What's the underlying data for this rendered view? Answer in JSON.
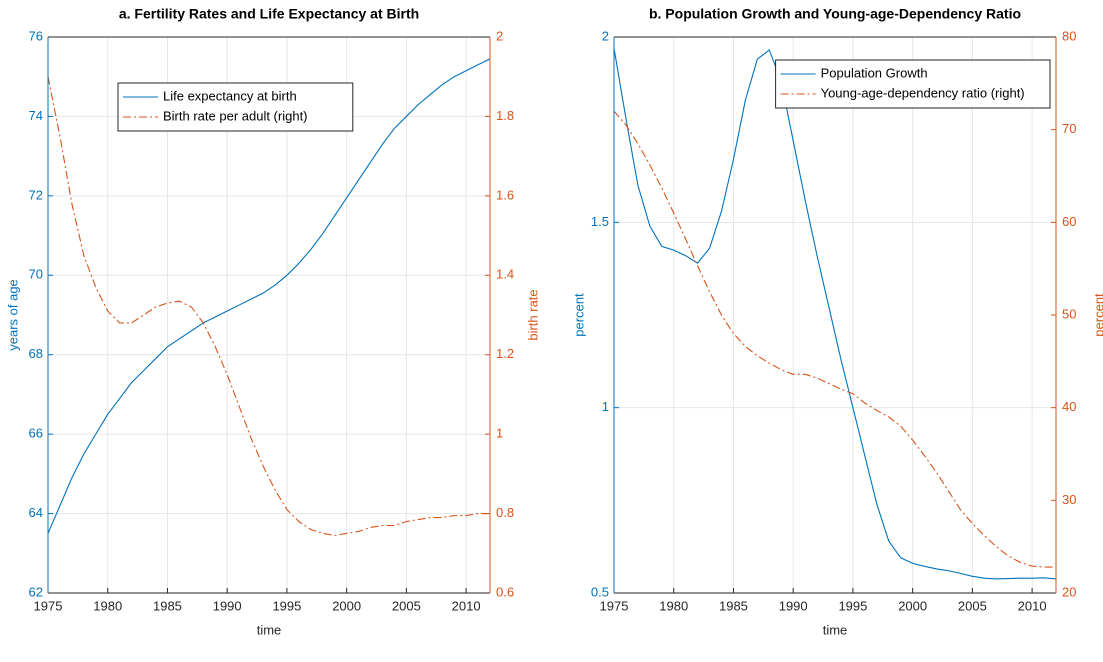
{
  "chart_data": [
    {
      "type": "line",
      "title": "a. Fertility Rates and Life Expectancy at Birth",
      "xlabel": "time",
      "ylabel": "years of age",
      "y2label": "birth rate",
      "x": [
        1975,
        1976,
        1977,
        1978,
        1979,
        1980,
        1981,
        1982,
        1983,
        1984,
        1985,
        1986,
        1987,
        1988,
        1989,
        1990,
        1991,
        1992,
        1993,
        1994,
        1995,
        1996,
        1997,
        1998,
        1999,
        2000,
        2001,
        2002,
        2003,
        2004,
        2005,
        2006,
        2007,
        2008,
        2009,
        2010,
        2011,
        2012
      ],
      "xlim": [
        1975,
        2012
      ],
      "xticks": [
        1975,
        1980,
        1985,
        1990,
        1995,
        2000,
        2005,
        2010
      ],
      "ylim": [
        62,
        76
      ],
      "yticks": [
        62,
        64,
        66,
        68,
        70,
        72,
        74,
        76
      ],
      "y2lim": [
        0.6,
        2
      ],
      "y2ticks": [
        0.6,
        0.8,
        1,
        1.2,
        1.4,
        1.6,
        1.8,
        2
      ],
      "grid": true,
      "legend": "north",
      "axis_colors": {
        "y": "#0072BD",
        "y2": "#D95319"
      },
      "series": [
        {
          "name": "Life expectancy at birth",
          "color": "#0072BD",
          "line_style": "solid",
          "values": [
            63.5,
            64.2,
            64.9,
            65.5,
            66.0,
            66.5,
            66.9,
            67.3,
            67.6,
            67.9,
            68.2,
            68.4,
            68.6,
            68.8,
            68.95,
            69.1,
            69.25,
            69.4,
            69.55,
            69.75,
            70.0,
            70.3,
            70.65,
            71.05,
            71.5,
            71.95,
            72.4,
            72.85,
            73.3,
            73.7,
            74.0,
            74.3,
            74.55,
            74.8,
            75.0,
            75.15,
            75.3,
            75.45
          ]
        },
        {
          "name": "Birth rate per adult (right)",
          "color": "#D95319",
          "line_style": "dashdot",
          "axis": "y2",
          "values": [
            1.9,
            1.75,
            1.58,
            1.45,
            1.37,
            1.31,
            1.28,
            1.28,
            1.3,
            1.32,
            1.33,
            1.335,
            1.32,
            1.28,
            1.22,
            1.15,
            1.07,
            0.99,
            0.92,
            0.86,
            0.81,
            0.78,
            0.76,
            0.75,
            0.745,
            0.75,
            0.755,
            0.765,
            0.77,
            0.77,
            0.78,
            0.785,
            0.79,
            0.79,
            0.795,
            0.795,
            0.8,
            0.8
          ]
        }
      ]
    },
    {
      "type": "line",
      "title": "b. Population Growth and Young-age-Dependency Ratio",
      "xlabel": "time",
      "ylabel": "percent",
      "y2label": "percent",
      "x": [
        1975,
        1976,
        1977,
        1978,
        1979,
        1980,
        1981,
        1982,
        1983,
        1984,
        1985,
        1986,
        1987,
        1988,
        1989,
        1990,
        1991,
        1992,
        1993,
        1994,
        1995,
        1996,
        1997,
        1998,
        1999,
        2000,
        2001,
        2002,
        2003,
        2004,
        2005,
        2006,
        2007,
        2008,
        2009,
        2010,
        2011,
        2012
      ],
      "xlim": [
        1975,
        2012
      ],
      "xticks": [
        1975,
        1980,
        1985,
        1990,
        1995,
        2000,
        2005,
        2010
      ],
      "ylim": [
        0.5,
        2
      ],
      "yticks": [
        0.5,
        1,
        1.5,
        2
      ],
      "y2lim": [
        20,
        80
      ],
      "y2ticks": [
        20,
        30,
        40,
        50,
        60,
        70,
        80
      ],
      "grid": true,
      "legend": "northeast",
      "axis_colors": {
        "y": "#0072BD",
        "y2": "#D95319"
      },
      "series": [
        {
          "name": "Population Growth",
          "color": "#0072BD",
          "line_style": "solid",
          "values": [
            1.97,
            1.78,
            1.6,
            1.49,
            1.435,
            1.425,
            1.41,
            1.39,
            1.43,
            1.53,
            1.67,
            1.83,
            1.94,
            1.965,
            1.88,
            1.72,
            1.56,
            1.41,
            1.27,
            1.13,
            1.0,
            0.87,
            0.74,
            0.64,
            0.595,
            0.58,
            0.572,
            0.565,
            0.56,
            0.553,
            0.545,
            0.54,
            0.538,
            0.539,
            0.54,
            0.54,
            0.541,
            0.538
          ]
        },
        {
          "name": "Young-age-dependency ratio (right)",
          "color": "#D95319",
          "line_style": "dashdot",
          "axis": "y2",
          "values": [
            72,
            70.5,
            68.5,
            66.2,
            63.7,
            61.0,
            58.2,
            55.3,
            52.5,
            50.0,
            48.0,
            46.6,
            45.6,
            44.8,
            44.1,
            43.6,
            43.6,
            43.2,
            42.6,
            42.0,
            41.5,
            40.5,
            39.7,
            39.0,
            38.0,
            36.5,
            34.8,
            33.0,
            31.0,
            29.0,
            27.5,
            26.2,
            25.0,
            24.0,
            23.3,
            22.9,
            22.8,
            22.8
          ]
        }
      ]
    }
  ]
}
